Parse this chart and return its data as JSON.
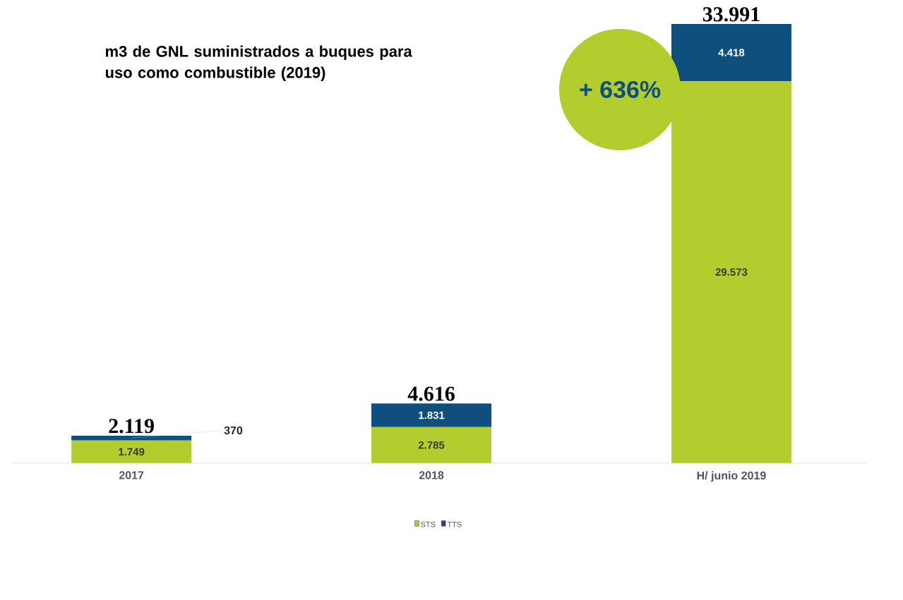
{
  "chart_data": {
    "type": "bar",
    "stacked": true,
    "title": "m3 de GNL suministrados a buques para uso como combustible (2019)",
    "categories": [
      "2017",
      "2018",
      "H/ junio 2019"
    ],
    "series": [
      {
        "name": "STS",
        "color": "#b3cd2e",
        "values": [
          1749,
          2785,
          29573
        ],
        "value_labels": [
          "1.749",
          "2.785",
          "29.573"
        ]
      },
      {
        "name": "TTS",
        "color": "#0e4f7d",
        "values": [
          370,
          1831,
          4418
        ],
        "value_labels": [
          "370",
          "1.831",
          "4.418"
        ]
      }
    ],
    "totals": [
      "2.119",
      "4.616",
      "33.991"
    ],
    "annotations": [
      "+ 636%"
    ],
    "legend": "bottom"
  }
}
